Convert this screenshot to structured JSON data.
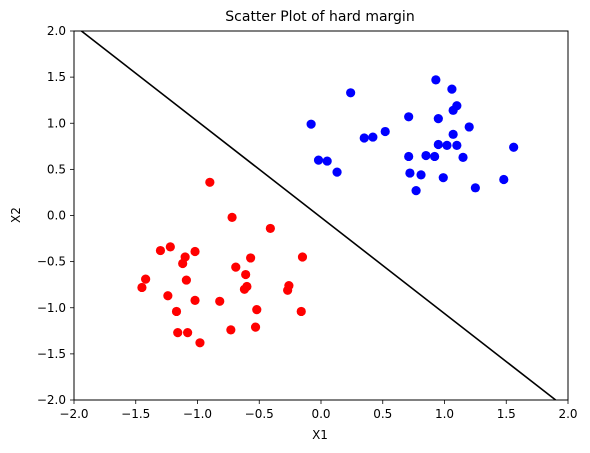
{
  "chart_data": {
    "type": "scatter",
    "title": "Scatter Plot of hard margin",
    "xlabel": "X1",
    "ylabel": "X2",
    "xlim": [
      -2.0,
      2.0
    ],
    "ylim": [
      -2.0,
      2.0
    ],
    "xticks": [
      "−2.0",
      "−1.5",
      "−1.0",
      "−0.5",
      "0.0",
      "0.5",
      "1.0",
      "1.5",
      "2.0"
    ],
    "yticks": [
      "−2.0",
      "−1.5",
      "−1.0",
      "−0.5",
      "0.0",
      "0.5",
      "1.0",
      "1.5",
      "2.0"
    ],
    "xtick_values": [
      -2.0,
      -1.5,
      -1.0,
      -0.5,
      0.0,
      0.5,
      1.0,
      1.5,
      2.0
    ],
    "ytick_values": [
      -2.0,
      -1.5,
      -1.0,
      -0.5,
      0.0,
      0.5,
      1.0,
      1.5,
      2.0
    ],
    "grid": false,
    "series": [
      {
        "color": "#0000ff",
        "points": [
          [
            0.24,
            1.33
          ],
          [
            0.93,
            1.47
          ],
          [
            1.06,
            1.37
          ],
          [
            1.1,
            1.19
          ],
          [
            1.07,
            1.14
          ],
          [
            1.2,
            0.96
          ],
          [
            -0.08,
            0.99
          ],
          [
            0.52,
            0.91
          ],
          [
            0.35,
            0.84
          ],
          [
            0.42,
            0.85
          ],
          [
            0.71,
            1.07
          ],
          [
            0.95,
            1.05
          ],
          [
            1.07,
            0.88
          ],
          [
            0.95,
            0.77
          ],
          [
            1.02,
            0.76
          ],
          [
            1.1,
            0.76
          ],
          [
            1.56,
            0.74
          ],
          [
            0.71,
            0.64
          ],
          [
            0.85,
            0.65
          ],
          [
            0.92,
            0.64
          ],
          [
            1.15,
            0.63
          ],
          [
            -0.02,
            0.6
          ],
          [
            0.05,
            0.59
          ],
          [
            0.13,
            0.47
          ],
          [
            0.72,
            0.46
          ],
          [
            0.81,
            0.44
          ],
          [
            0.99,
            0.41
          ],
          [
            1.48,
            0.39
          ],
          [
            0.77,
            0.27
          ],
          [
            1.25,
            0.3
          ]
        ]
      },
      {
        "color": "#ff0000",
        "points": [
          [
            -0.9,
            0.36
          ],
          [
            -0.72,
            -0.02
          ],
          [
            -0.41,
            -0.14
          ],
          [
            -1.22,
            -0.34
          ],
          [
            -1.3,
            -0.38
          ],
          [
            -1.02,
            -0.39
          ],
          [
            -1.1,
            -0.45
          ],
          [
            -0.57,
            -0.46
          ],
          [
            -0.15,
            -0.45
          ],
          [
            -1.12,
            -0.52
          ],
          [
            -0.69,
            -0.56
          ],
          [
            -0.61,
            -0.64
          ],
          [
            -1.42,
            -0.69
          ],
          [
            -1.09,
            -0.7
          ],
          [
            -0.6,
            -0.77
          ],
          [
            -0.62,
            -0.8
          ],
          [
            -0.26,
            -0.76
          ],
          [
            -0.27,
            -0.81
          ],
          [
            -1.45,
            -0.78
          ],
          [
            -1.24,
            -0.87
          ],
          [
            -1.02,
            -0.92
          ],
          [
            -0.82,
            -0.93
          ],
          [
            -0.52,
            -1.02
          ],
          [
            -1.17,
            -1.04
          ],
          [
            -0.16,
            -1.04
          ],
          [
            -0.53,
            -1.21
          ],
          [
            -0.73,
            -1.24
          ],
          [
            -1.16,
            -1.27
          ],
          [
            -1.08,
            -1.27
          ],
          [
            -0.98,
            -1.38
          ]
        ]
      }
    ],
    "decision_line": {
      "color": "#000000",
      "points": [
        [
          -1.94,
          2.0
        ],
        [
          1.9,
          -2.0
        ]
      ]
    }
  }
}
